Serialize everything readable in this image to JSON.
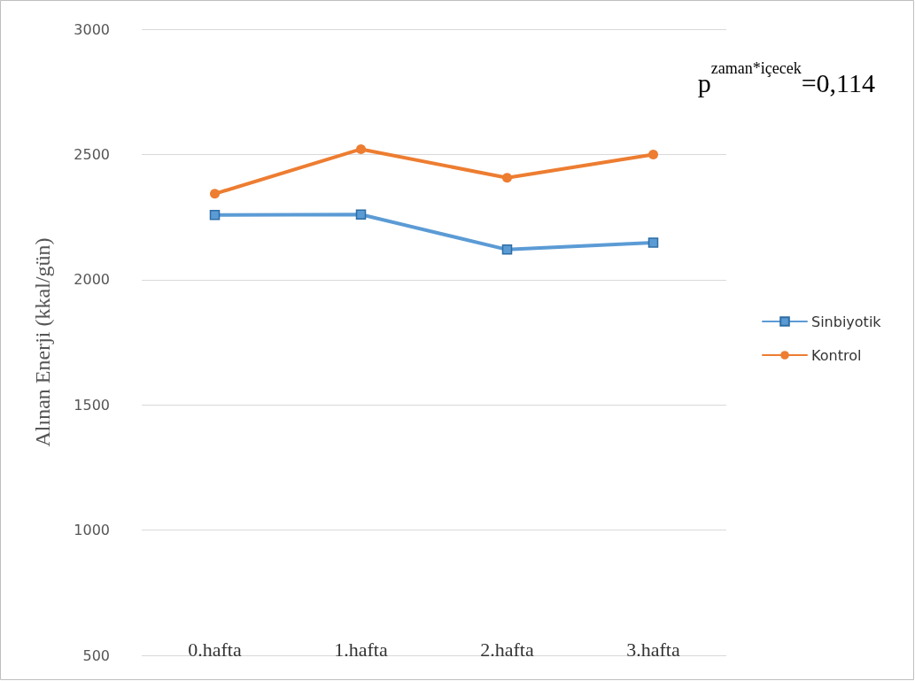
{
  "chart_data": {
    "type": "line",
    "ylabel": "Alınan Enerji (kkal/gün)",
    "categories": [
      "0.hafta",
      "1.hafta",
      "2.hafta",
      "3.hafta"
    ],
    "series": [
      {
        "name": "Sinbiyotik",
        "color": "#5b9bd5",
        "marker": "square",
        "values": [
          2258,
          2260,
          2120,
          2148
        ]
      },
      {
        "name": "Kontrol",
        "color": "#ed7d31",
        "marker": "circle",
        "values": [
          2343,
          2521,
          2407,
          2500
        ]
      }
    ],
    "ylim": [
      500,
      3000
    ],
    "yticks": [
      500,
      1000,
      1500,
      2000,
      2500,
      3000
    ],
    "grid": "y",
    "legend": "right",
    "annotations": [
      "p$^{zaman*içecek}$=0,114"
    ]
  }
}
